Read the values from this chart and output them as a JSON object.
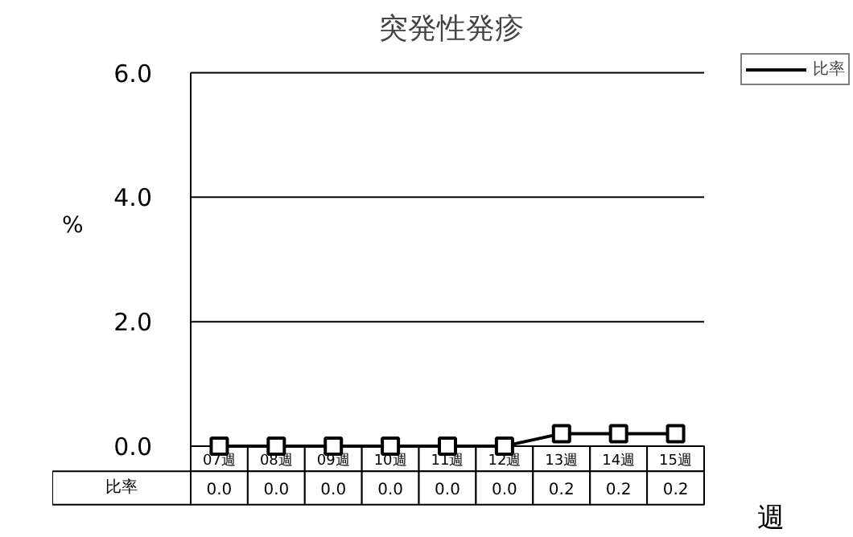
{
  "chart_data": {
    "type": "line",
    "title": "突発性発疹",
    "ylabel": "%",
    "xlabel": "週",
    "categories": [
      "07週",
      "08週",
      "09週",
      "10週",
      "11週",
      "12週",
      "13週",
      "14週",
      "15週"
    ],
    "series": [
      {
        "name": "比率",
        "color": "#000000",
        "values": [
          0.0,
          0.0,
          0.0,
          0.0,
          0.0,
          0.0,
          0.2,
          0.2,
          0.2
        ],
        "value_labels": [
          "0.0",
          "0.0",
          "0.0",
          "0.0",
          "0.0",
          "0.0",
          "0.2",
          "0.2",
          "0.2"
        ]
      }
    ],
    "ylim": [
      0,
      6
    ],
    "yticks": [
      {
        "value": 0,
        "label": "0.0"
      },
      {
        "value": 2,
        "label": "2.0"
      },
      {
        "value": 4,
        "label": "4.0"
      },
      {
        "value": 6,
        "label": "6.0"
      }
    ],
    "grid": "y",
    "legend": "top right",
    "marker": "square",
    "line_style": "solid"
  }
}
